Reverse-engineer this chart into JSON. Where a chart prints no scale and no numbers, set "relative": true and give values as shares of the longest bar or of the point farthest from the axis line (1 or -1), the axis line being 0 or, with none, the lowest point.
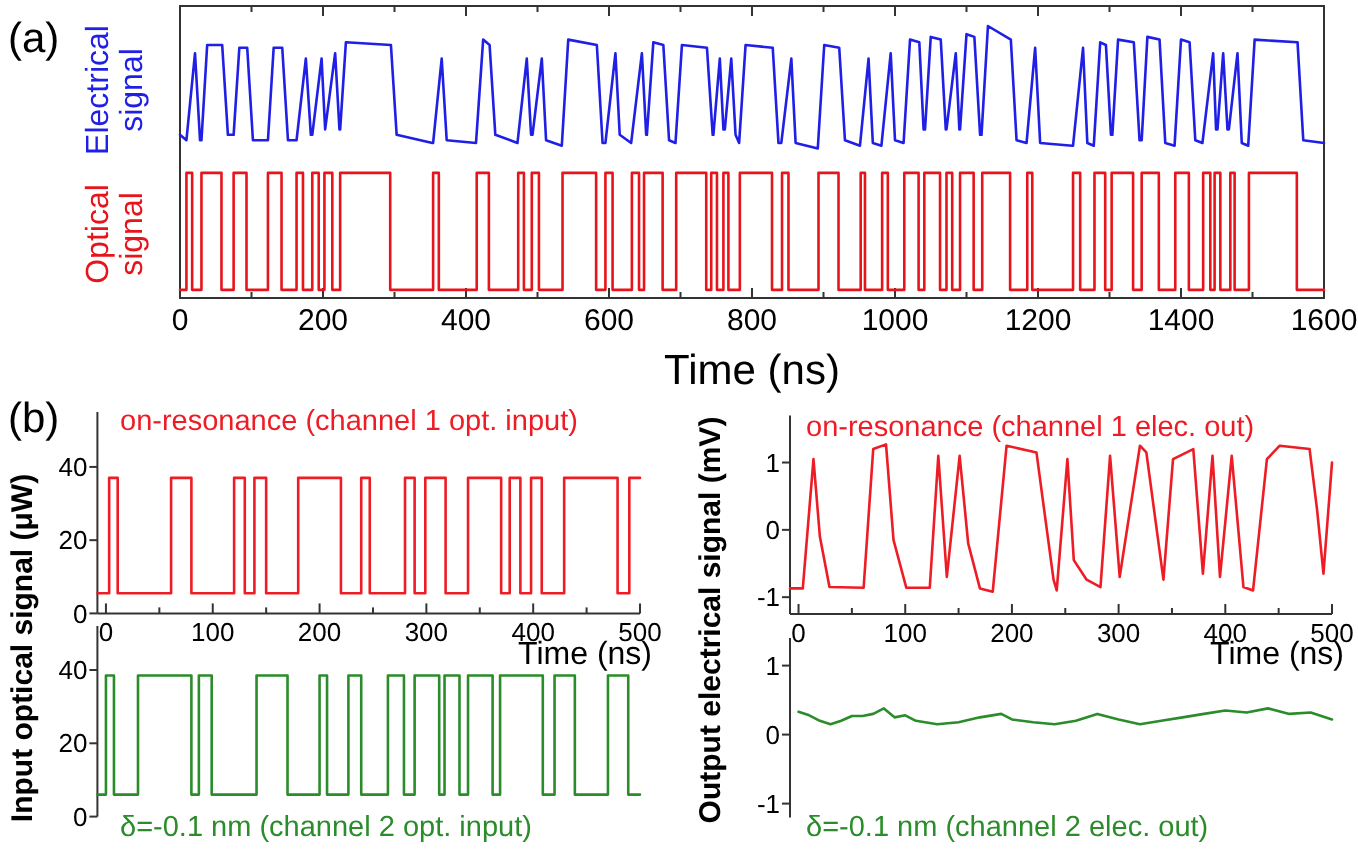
{
  "chart_data": [
    {
      "type": "line",
      "relative": true,
      "xlabel": "Time (ns)",
      "annotations": [
        "(a)"
      ],
      "xlim": [
        0,
        1600
      ],
      "xticks": [
        0,
        {
          "value": 100,
          "label": null
        },
        200,
        {
          "value": 300,
          "label": null
        },
        400,
        {
          "value": 500,
          "label": null
        },
        600,
        {
          "value": 700,
          "label": null
        },
        800,
        {
          "value": 900,
          "label": null
        },
        1000,
        {
          "value": 1100,
          "label": null
        },
        1200,
        {
          "value": 1300,
          "label": null
        },
        1400,
        {
          "value": 1500,
          "label": null
        },
        1600
      ],
      "series": [
        {
          "name": "Electrical signal",
          "color": "#1f1fe6",
          "x": [
            0,
            9,
            21,
            28,
            30,
            38,
            59,
            67,
            75,
            83,
            94,
            102,
            123,
            131,
            143,
            151,
            163,
            176,
            183,
            185,
            198,
            203,
            217,
            223,
            224,
            232,
            295,
            303,
            353,
            354,
            366,
            373,
            414,
            424,
            433,
            441,
            472,
            485,
            491,
            493,
            506,
            512,
            534,
            543,
            583,
            591,
            595,
            609,
            615,
            631,
            646,
            652,
            653,
            662,
            676,
            684,
            693,
            702,
            737,
            745,
            746,
            755,
            760,
            762,
            771,
            777,
            782,
            791,
            829,
            837,
            841,
            855,
            861,
            892,
            901,
            922,
            930,
            951,
            963,
            969,
            981,
            994,
            1000,
            1012,
            1021,
            1034,
            1040,
            1042,
            1050,
            1064,
            1071,
            1072,
            1085,
            1090,
            1091,
            1100,
            1111,
            1119,
            1121,
            1130,
            1162,
            1170,
            1184,
            1196,
            1203,
            1248,
            1249,
            1263,
            1269,
            1278,
            1287,
            1295,
            1302,
            1304,
            1312,
            1334,
            1342,
            1345,
            1353,
            1370,
            1378,
            1391,
            1400,
            1412,
            1420,
            1430,
            1445,
            1449,
            1451,
            1459,
            1465,
            1467,
            1479,
            1485,
            1494,
            1503,
            1563,
            1571,
            1600
          ],
          "values": [
            0.6,
            0.58,
            0.9,
            0.58,
            0.58,
            0.93,
            0.93,
            0.6,
            0.6,
            0.92,
            0.92,
            0.58,
            0.58,
            0.92,
            0.92,
            0.58,
            0.58,
            0.88,
            0.6,
            0.6,
            0.88,
            0.62,
            0.9,
            0.62,
            0.62,
            0.94,
            0.93,
            0.6,
            0.57,
            0.57,
            0.88,
            0.58,
            0.57,
            0.95,
            0.93,
            0.6,
            0.57,
            0.88,
            0.6,
            0.6,
            0.88,
            0.58,
            0.56,
            0.95,
            0.93,
            0.57,
            0.57,
            0.9,
            0.6,
            0.57,
            0.9,
            0.6,
            0.6,
            0.94,
            0.93,
            0.58,
            0.57,
            0.93,
            0.92,
            0.6,
            0.6,
            0.88,
            0.62,
            0.62,
            0.88,
            0.6,
            0.57,
            0.93,
            0.92,
            0.57,
            0.57,
            0.88,
            0.57,
            0.55,
            0.93,
            0.92,
            0.58,
            0.56,
            0.88,
            0.57,
            0.56,
            0.9,
            0.58,
            0.57,
            0.95,
            0.94,
            0.62,
            0.62,
            0.96,
            0.95,
            0.62,
            0.62,
            0.9,
            0.62,
            0.62,
            0.97,
            0.96,
            0.6,
            0.6,
            1.0,
            0.95,
            0.58,
            0.57,
            0.92,
            0.57,
            0.56,
            0.56,
            0.92,
            0.57,
            0.56,
            0.94,
            0.93,
            0.6,
            0.6,
            0.95,
            0.94,
            0.58,
            0.58,
            0.96,
            0.95,
            0.57,
            0.56,
            0.95,
            0.94,
            0.58,
            0.57,
            0.9,
            0.62,
            0.62,
            0.9,
            0.62,
            0.62,
            0.9,
            0.57,
            0.56,
            0.95,
            0.94,
            0.58,
            0.57
          ]
        },
        {
          "name": "Optical signal",
          "color": "#e8141c",
          "type": "step",
          "x": [
            0,
            9,
            17,
            30,
            58,
            75,
            93,
            123,
            142,
            163,
            172,
            185,
            194,
            202,
            213,
            224,
            294,
            354,
            362,
            415,
            432,
            473,
            481,
            492,
            502,
            535,
            582,
            595,
            605,
            632,
            642,
            649,
            675,
            694,
            736,
            743,
            751,
            760,
            767,
            783,
            828,
            842,
            851,
            893,
            921,
            952,
            958,
            982,
            990,
            1013,
            1033,
            1041,
            1063,
            1072,
            1080,
            1091,
            1110,
            1122,
            1161,
            1185,
            1192,
            1249,
            1259,
            1279,
            1294,
            1303,
            1333,
            1345,
            1369,
            1392,
            1411,
            1431,
            1441,
            1447,
            1455,
            1469,
            1475,
            1495,
            1562,
            1600
          ],
          "values": [
            0.03,
            0.46,
            0.03,
            0.46,
            0.03,
            0.46,
            0.03,
            0.46,
            0.03,
            0.46,
            0.03,
            0.46,
            0.03,
            0.46,
            0.03,
            0.46,
            0.03,
            0.46,
            0.03,
            0.46,
            0.03,
            0.46,
            0.03,
            0.46,
            0.03,
            0.46,
            0.03,
            0.46,
            0.03,
            0.46,
            0.03,
            0.46,
            0.03,
            0.46,
            0.03,
            0.46,
            0.03,
            0.46,
            0.03,
            0.46,
            0.03,
            0.46,
            0.03,
            0.46,
            0.03,
            0.46,
            0.03,
            0.46,
            0.03,
            0.46,
            0.03,
            0.46,
            0.03,
            0.46,
            0.03,
            0.46,
            0.03,
            0.46,
            0.03,
            0.46,
            0.03,
            0.46,
            0.03,
            0.46,
            0.03,
            0.46,
            0.03,
            0.46,
            0.03,
            0.46,
            0.03,
            0.46,
            0.03,
            0.46,
            0.03,
            0.46,
            0.03,
            0.46,
            0.03,
            0.03
          ]
        }
      ]
    },
    {
      "type": "step",
      "xlabel": "Time (ns)",
      "ylabel": "Input optical signal (μW)",
      "annotations": [
        "(b)"
      ],
      "xlim": [
        -8,
        500
      ],
      "ylim": [
        0,
        55
      ],
      "xticks": [
        0,
        {
          "value": 50,
          "label": null
        },
        100,
        {
          "value": 150,
          "label": null
        },
        200,
        {
          "value": 250,
          "label": null
        },
        300,
        {
          "value": 350,
          "label": null
        },
        400,
        {
          "value": 450,
          "label": null
        },
        500
      ],
      "yticks": [
        0,
        20,
        40
      ],
      "series": [
        {
          "name": "on-resonance (channel 1 opt. input)",
          "color": "#ee1c24",
          "x": [
            -8,
            3,
            11,
            61,
            80,
            120,
            130,
            139,
            150,
            180,
            220,
            239,
            247,
            280,
            289,
            299,
            318,
            339,
            370,
            378,
            388,
            398,
            408,
            429,
            479,
            490,
            500
          ],
          "values": [
            5.5,
            37,
            5.5,
            37,
            5.5,
            37,
            5.5,
            37,
            5.5,
            37,
            5.5,
            37,
            5.5,
            37,
            5.5,
            37,
            5.5,
            37,
            5.5,
            37,
            5.5,
            37,
            5.5,
            37,
            5.5,
            37,
            37
          ]
        }
      ]
    },
    {
      "type": "step",
      "tick_labels": "y",
      "xlim": [
        -8,
        500
      ],
      "ylim": [
        0,
        52
      ],
      "yticks": [
        0,
        20,
        40
      ],
      "series": [
        {
          "name": "δ=-0.1 nm (channel 2 opt. input)",
          "color": "#2a8c2a",
          "x": [
            -8,
            0,
            7.5,
            30,
            80,
            87,
            99,
            141,
            170,
            200,
            207,
            227,
            239,
            264,
            279,
            289,
            312,
            317,
            331,
            339,
            362,
            369,
            409,
            420,
            439,
            470,
            489,
            500
          ],
          "values": [
            6,
            38.5,
            6,
            38.5,
            6,
            38.5,
            6,
            38.5,
            6,
            38.5,
            6,
            38.5,
            6,
            38.5,
            6,
            38.5,
            6,
            38.5,
            6,
            38.5,
            6,
            38.5,
            6,
            38.5,
            6,
            38.5,
            6,
            6
          ]
        }
      ]
    },
    {
      "type": "line",
      "xlabel": "Time (ns)",
      "ylabel": "Output electrical signal (mV)",
      "xlim": [
        -8,
        500
      ],
      "ylim": [
        -1.25,
        1.7
      ],
      "xticks": [
        0,
        {
          "value": 50,
          "label": null
        },
        100,
        {
          "value": 150,
          "label": null
        },
        200,
        {
          "value": 250,
          "label": null
        },
        300,
        {
          "value": 350,
          "label": null
        },
        400,
        {
          "value": 450,
          "label": null
        },
        500
      ],
      "yticks": [
        -1,
        0,
        1
      ],
      "series": [
        {
          "name": "on-resonance (channel 1 elec. out)",
          "color": "#ee1c24",
          "x": [
            -8,
            4,
            14,
            20,
            29,
            61,
            70,
            82,
            89,
            101,
            123,
            131,
            139,
            151,
            159,
            170,
            182,
            195,
            223,
            239,
            242,
            252,
            258,
            270,
            283,
            292,
            301,
            320,
            326,
            342,
            351,
            370,
            379,
            388,
            395,
            406,
            417,
            426,
            439,
            451,
            479,
            486,
            492,
            500
          ],
          "values": [
            -0.87,
            -0.87,
            1.05,
            -0.1,
            -0.85,
            -0.86,
            1.2,
            1.27,
            -0.15,
            -0.86,
            -0.86,
            1.1,
            -0.7,
            1.1,
            -0.2,
            -0.87,
            -0.92,
            1.25,
            1.15,
            -0.74,
            -0.9,
            1.05,
            -0.45,
            -0.74,
            -0.85,
            1.1,
            -0.7,
            1.25,
            1.15,
            -0.74,
            1.05,
            1.2,
            -0.65,
            1.1,
            -0.7,
            1.1,
            -0.85,
            -0.9,
            1.05,
            1.25,
            1.2,
            0.3,
            -0.65,
            1.0
          ]
        }
      ]
    },
    {
      "type": "line",
      "tick_labels": "y",
      "xlim": [
        -8,
        500
      ],
      "ylim": [
        -1.2,
        1.4
      ],
      "yticks": [
        -1,
        0,
        1
      ],
      "series": [
        {
          "name": "δ=-0.1 nm (channel 2 elec. out)",
          "color": "#2a8c2a",
          "x": [
            0,
            10,
            20,
            30,
            40,
            50,
            60,
            70,
            80,
            90,
            100,
            110,
            130,
            150,
            170,
            190,
            200,
            220,
            240,
            260,
            280,
            300,
            320,
            340,
            360,
            380,
            400,
            420,
            440,
            460,
            480,
            500
          ],
          "values": [
            0.33,
            0.28,
            0.2,
            0.15,
            0.2,
            0.27,
            0.27,
            0.3,
            0.38,
            0.25,
            0.28,
            0.2,
            0.15,
            0.18,
            0.25,
            0.3,
            0.22,
            0.18,
            0.15,
            0.2,
            0.3,
            0.22,
            0.15,
            0.2,
            0.25,
            0.3,
            0.35,
            0.32,
            0.38,
            0.3,
            0.32,
            0.22
          ]
        }
      ]
    }
  ]
}
